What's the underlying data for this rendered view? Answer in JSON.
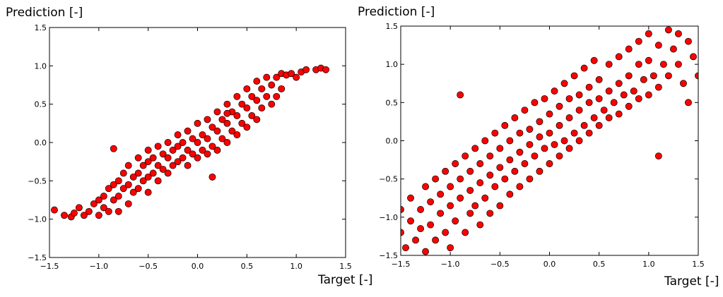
{
  "chart_data": [
    {
      "type": "scatter",
      "xlabel": "Target [-]",
      "ylabel": "Prediction [-]",
      "color": "#ff0000",
      "edgecolor": "#000000",
      "xlim": [
        -1.5,
        1.5
      ],
      "ylim": [
        -1.5,
        1.5
      ],
      "xticks": [
        {
          "value": -1.5,
          "label": "−1.5"
        },
        {
          "value": -1,
          "label": "−1.0"
        },
        {
          "value": -0.5,
          "label": "−0.5"
        },
        {
          "value": 0,
          "label": "0.0"
        },
        0.5,
        {
          "value": 1,
          "label": "1.0"
        },
        1.5
      ],
      "yticks": [
        {
          "value": -1.5,
          "label": "−1.5"
        },
        {
          "value": -1,
          "label": "−1.0"
        },
        {
          "value": -0.5,
          "label": "−0.5"
        },
        {
          "value": 0,
          "label": "0.0"
        },
        0.5,
        {
          "value": 1,
          "label": "1.0"
        },
        1.5
      ],
      "x": [
        -1.45,
        -1.35,
        -1.28,
        -1.25,
        -1.2,
        -1.15,
        -1.1,
        -1.05,
        -1.0,
        -1.0,
        -0.95,
        -0.95,
        -0.9,
        -0.9,
        -0.85,
        -0.85,
        -0.8,
        -0.8,
        -0.8,
        -0.75,
        -0.75,
        -0.7,
        -0.7,
        -0.7,
        -0.65,
        -0.65,
        -0.6,
        -0.6,
        -0.6,
        -0.55,
        -0.55,
        -0.5,
        -0.5,
        -0.5,
        -0.5,
        -0.45,
        -0.45,
        -0.4,
        -0.4,
        -0.4,
        -0.35,
        -0.35,
        -0.3,
        -0.3,
        -0.3,
        -0.25,
        -0.25,
        -0.2,
        -0.2,
        -0.2,
        -0.15,
        -0.15,
        -0.1,
        -0.1,
        -0.1,
        -0.05,
        -0.05,
        0.0,
        0.0,
        0.0,
        0.05,
        0.05,
        0.1,
        0.1,
        0.1,
        0.15,
        0.15,
        0.2,
        0.2,
        0.2,
        0.25,
        0.25,
        0.3,
        0.3,
        0.3,
        0.35,
        0.35,
        0.4,
        0.4,
        0.4,
        0.45,
        0.45,
        0.5,
        0.5,
        0.5,
        0.55,
        0.55,
        0.6,
        0.6,
        0.6,
        0.65,
        0.65,
        0.7,
        0.7,
        0.75,
        0.75,
        0.8,
        0.8,
        0.85,
        0.85,
        0.9,
        0.95,
        1.0,
        1.05,
        1.1,
        1.2,
        1.25,
        1.3,
        -0.85,
        0.15,
        0.3
      ],
      "values": [
        -0.88,
        -0.95,
        -0.97,
        -0.92,
        -0.85,
        -0.95,
        -0.9,
        -0.8,
        -0.75,
        -0.95,
        -0.7,
        -0.85,
        -0.6,
        -0.9,
        -0.55,
        -0.75,
        -0.5,
        -0.7,
        -0.9,
        -0.4,
        -0.6,
        -0.3,
        -0.55,
        -0.8,
        -0.45,
        -0.65,
        -0.2,
        -0.4,
        -0.6,
        -0.3,
        -0.5,
        -0.1,
        -0.25,
        -0.45,
        -0.65,
        -0.2,
        -0.4,
        -0.05,
        -0.3,
        -0.5,
        -0.15,
        -0.35,
        0.0,
        -0.2,
        -0.4,
        -0.1,
        -0.3,
        0.1,
        -0.05,
        -0.25,
        0.0,
        -0.2,
        0.15,
        -0.1,
        -0.3,
        0.05,
        -0.15,
        0.25,
        0.0,
        -0.2,
        0.1,
        -0.1,
        0.3,
        0.05,
        -0.15,
        0.2,
        -0.05,
        0.4,
        0.15,
        -0.1,
        0.3,
        0.05,
        0.5,
        0.25,
        0.0,
        0.4,
        0.15,
        0.6,
        0.35,
        0.1,
        0.5,
        0.25,
        0.7,
        0.45,
        0.2,
        0.6,
        0.35,
        0.8,
        0.55,
        0.3,
        0.7,
        0.45,
        0.85,
        0.6,
        0.75,
        0.5,
        0.85,
        0.6,
        0.9,
        0.7,
        0.88,
        0.9,
        0.85,
        0.92,
        0.95,
        0.95,
        0.97,
        0.95,
        -0.08,
        -0.45,
        0.38
      ]
    },
    {
      "type": "scatter",
      "xlabel": "Target [-]",
      "ylabel": "Prediction [-]",
      "color": "#ff0000",
      "edgecolor": "#000000",
      "xlim": [
        -1.5,
        1.5
      ],
      "ylim": [
        -1.5,
        1.5
      ],
      "xticks": [
        {
          "value": -1.5,
          "label": "−1.5"
        },
        {
          "value": -1,
          "label": "−1.0"
        },
        {
          "value": -0.5,
          "label": "−0.5"
        },
        {
          "value": 0,
          "label": "0.0"
        },
        0.5,
        {
          "value": 1,
          "label": "1.0"
        },
        1.5
      ],
      "yticks": [
        {
          "value": -1.5,
          "label": "−1.5"
        },
        {
          "value": -1,
          "label": "−1.0"
        },
        {
          "value": -0.5,
          "label": "−0.5"
        },
        {
          "value": 0,
          "label": "0.0"
        },
        0.5,
        {
          "value": 1,
          "label": "1.0"
        },
        1.5
      ],
      "x": [
        -1.5,
        -1.5,
        -1.45,
        -1.4,
        -1.4,
        -1.35,
        -1.3,
        -1.3,
        -1.25,
        -1.25,
        -1.2,
        -1.2,
        -1.15,
        -1.15,
        -1.1,
        -1.1,
        -1.05,
        -1.05,
        -1.0,
        -1.0,
        -1.0,
        -0.95,
        -0.95,
        -0.9,
        -0.9,
        -0.9,
        -0.85,
        -0.85,
        -0.8,
        -0.8,
        -0.8,
        -0.75,
        -0.75,
        -0.7,
        -0.7,
        -0.7,
        -0.65,
        -0.65,
        -0.6,
        -0.6,
        -0.6,
        -0.55,
        -0.55,
        -0.5,
        -0.5,
        -0.5,
        -0.45,
        -0.45,
        -0.4,
        -0.4,
        -0.4,
        -0.35,
        -0.35,
        -0.3,
        -0.3,
        -0.3,
        -0.25,
        -0.25,
        -0.2,
        -0.2,
        -0.2,
        -0.15,
        -0.15,
        -0.1,
        -0.1,
        -0.1,
        -0.05,
        -0.05,
        0.0,
        0.0,
        0.0,
        0.05,
        0.05,
        0.1,
        0.1,
        0.1,
        0.15,
        0.15,
        0.2,
        0.2,
        0.2,
        0.25,
        0.25,
        0.3,
        0.3,
        0.3,
        0.35,
        0.35,
        0.4,
        0.4,
        0.4,
        0.45,
        0.45,
        0.5,
        0.5,
        0.5,
        0.55,
        0.6,
        0.6,
        0.6,
        0.65,
        0.7,
        0.7,
        0.7,
        0.75,
        0.8,
        0.8,
        0.8,
        0.85,
        0.9,
        0.9,
        0.9,
        0.95,
        1.0,
        1.0,
        1.0,
        1.05,
        1.1,
        1.1,
        1.1,
        1.15,
        1.2,
        1.2,
        1.25,
        1.3,
        1.3,
        1.35,
        1.4,
        1.4,
        1.45,
        1.5
      ],
      "values": [
        -0.9,
        -1.2,
        -1.4,
        -0.75,
        -1.05,
        -1.3,
        -0.9,
        -1.15,
        -0.6,
        -1.45,
        -0.8,
        -1.1,
        -0.5,
        -1.3,
        -0.7,
        -0.95,
        -0.4,
        -1.2,
        -0.6,
        -0.85,
        -1.4,
        -0.3,
        -1.05,
        0.6,
        -0.5,
        -0.75,
        -0.2,
        -1.2,
        -0.4,
        -0.65,
        -0.95,
        -0.1,
        -0.85,
        -0.3,
        -0.55,
        -1.1,
        0.0,
        -0.75,
        -0.2,
        -0.45,
        -0.95,
        0.1,
        -0.6,
        -0.1,
        -0.35,
        -0.85,
        0.2,
        -0.5,
        0.0,
        -0.25,
        -0.7,
        0.3,
        -0.4,
        0.1,
        -0.15,
        -0.6,
        0.4,
        -0.3,
        0.15,
        -0.05,
        -0.5,
        0.5,
        -0.2,
        0.25,
        0.05,
        -0.4,
        0.55,
        -0.1,
        0.35,
        0.1,
        -0.3,
        0.65,
        -0.05,
        0.45,
        0.2,
        -0.2,
        0.75,
        0.0,
        0.55,
        0.3,
        -0.1,
        0.85,
        0.1,
        0.6,
        0.4,
        0.0,
        0.95,
        0.2,
        0.7,
        0.5,
        0.1,
        1.05,
        0.3,
        0.8,
        0.55,
        0.2,
        0.4,
        1.0,
        0.65,
        0.3,
        0.5,
        1.1,
        0.75,
        0.35,
        0.6,
        1.2,
        0.85,
        0.45,
        0.65,
        1.3,
        1.0,
        0.55,
        0.8,
        1.4,
        1.05,
        0.6,
        0.85,
        1.25,
        0.7,
        -0.2,
        1.0,
        1.45,
        0.85,
        1.2,
        1.4,
        1.0,
        0.75,
        1.3,
        0.5,
        1.1,
        0.85
      ]
    }
  ]
}
